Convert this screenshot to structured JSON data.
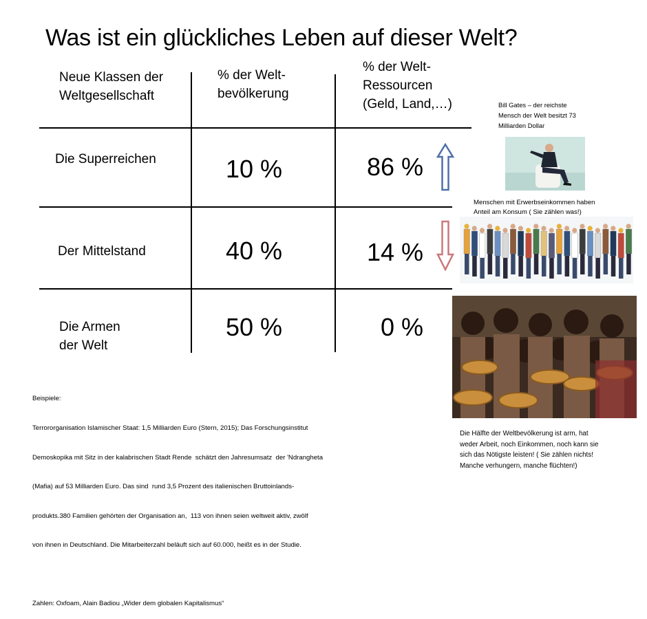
{
  "title": "Was ist ein glückliches Leben auf dieser Welt?",
  "table": {
    "headers": {
      "class": [
        "Neue Klassen der",
        "Weltgesellschaft"
      ],
      "population": [
        "% der Welt-",
        "bevölkerung"
      ],
      "resources": [
        "% der Welt-",
        "Ressourcen",
        "(Geld, Land,…)"
      ]
    },
    "rows": [
      {
        "label": [
          "Die Superreichen"
        ],
        "population": "10 %",
        "resources": "86 %"
      },
      {
        "label": [
          "Der Mittelstand"
        ],
        "population": "40 %",
        "resources": "14 %"
      },
      {
        "label": [
          "Die Armen",
          "der Welt"
        ],
        "population": "50 %",
        "resources": "0 %"
      }
    ]
  },
  "arrows": {
    "up_color": "#4f6fa8",
    "down_color": "#c9787a"
  },
  "captions": {
    "gates": [
      "Bill Gates – der reichste",
      "Mensch der Welt besitzt 73",
      "Milliarden Dollar"
    ],
    "middle": [
      "Menschen mit Erwerbseinkommen haben",
      "Anteil am Konsum ( Sie zählen was!)"
    ],
    "poor": [
      "Die  Hälfte der Weltbevölkerung ist arm, hat",
      "weder Arbeit, noch Einkommen,  noch kann sie",
      "sich das Nötigste  leisten! ( Sie  zählen nichts!",
      "Manche verhungern, manche  flüchten!)"
    ]
  },
  "examples": {
    "lines": [
      "Beispiele:",
      "Terrororganisation Islamischer Staat: 1,5 Milliarden Euro (Stern, 2015); Das Forschungsinstitut",
      "Demoskopika mit Sitz in der kalabrischen Stadt Rende  schätzt den Jahresumsatz  der 'Ndrangheta",
      "(Mafia) auf 53 Milliarden Euro. Das sind  rund 3,5 Prozent des italienischen Bruttoinlands-",
      "produkts.380 Familien gehörten der Organisation an,  113 von ihnen seien weltweit aktiv, zwölf",
      "von ihnen in Deutschland. Die Mitarbeiterzahl beläuft sich auf 60.000, heißt es in der Studie.",
      "",
      "Zahlen: Oxfoam, Alain Badiou „Wider dem globalen Kapitalismus“"
    ]
  }
}
